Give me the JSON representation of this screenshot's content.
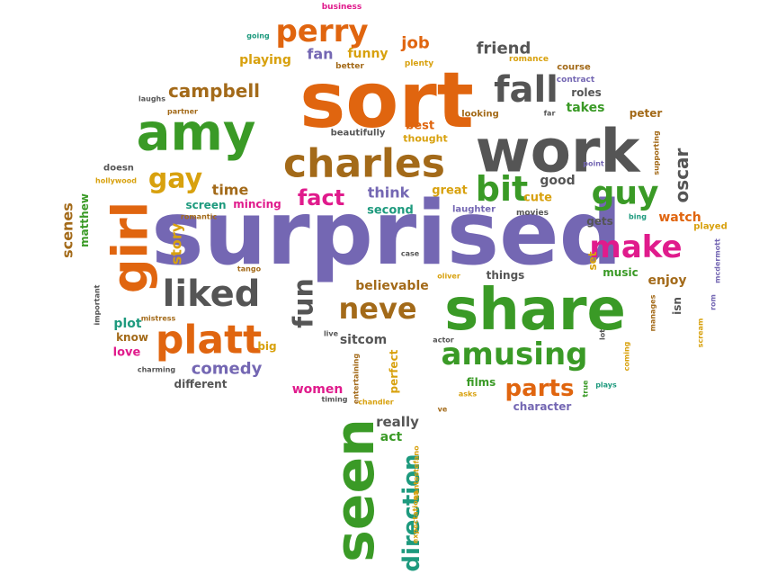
{
  "colors": {
    "orange": "#e0650f",
    "green": "#3a9a26",
    "purple": "#7467b3",
    "gray": "#555555",
    "brown": "#a36a19",
    "magenta": "#e01b8c",
    "teal": "#1e9a7e",
    "gold": "#d8a10e"
  },
  "words": [
    {
      "text": "surprised",
      "color": "purple"
    },
    {
      "text": "sort",
      "color": "orange"
    },
    {
      "text": "work",
      "color": "gray"
    },
    {
      "text": "share",
      "color": "green"
    },
    {
      "text": "amy",
      "color": "green"
    },
    {
      "text": "charles",
      "color": "brown"
    },
    {
      "text": "girl",
      "color": "orange"
    },
    {
      "text": "seen",
      "color": "green"
    },
    {
      "text": "platt",
      "color": "orange"
    },
    {
      "text": "liked",
      "color": "gray"
    },
    {
      "text": "fall",
      "color": "gray"
    },
    {
      "text": "make",
      "color": "magenta"
    },
    {
      "text": "perry",
      "color": "orange"
    },
    {
      "text": "amusing",
      "color": "green"
    },
    {
      "text": "neve",
      "color": "brown"
    },
    {
      "text": "bit",
      "color": "green"
    },
    {
      "text": "guy",
      "color": "green"
    },
    {
      "text": "gay",
      "color": "gold"
    },
    {
      "text": "fact",
      "color": "magenta"
    },
    {
      "text": "fun",
      "color": "gray"
    },
    {
      "text": "direction",
      "color": "teal"
    },
    {
      "text": "campbell",
      "color": "brown"
    },
    {
      "text": "parts",
      "color": "orange"
    },
    {
      "text": "comedy",
      "color": "purple"
    },
    {
      "text": "oscar",
      "color": "gray"
    },
    {
      "text": "story",
      "color": "gold"
    },
    {
      "text": "scenes",
      "color": "brown"
    },
    {
      "text": "friend",
      "color": "gray"
    },
    {
      "text": "job",
      "color": "orange"
    },
    {
      "text": "fan",
      "color": "purple"
    },
    {
      "text": "funny",
      "color": "gold"
    },
    {
      "text": "playing",
      "color": "gold"
    },
    {
      "text": "think",
      "color": "purple"
    },
    {
      "text": "time",
      "color": "brown"
    },
    {
      "text": "believable",
      "color": "brown"
    },
    {
      "text": "sitcom",
      "color": "gray"
    },
    {
      "text": "plot",
      "color": "teal"
    },
    {
      "text": "enjoy",
      "color": "brown"
    },
    {
      "text": "takes",
      "color": "green"
    },
    {
      "text": "roles",
      "color": "gray"
    },
    {
      "text": "peter",
      "color": "brown"
    },
    {
      "text": "watch",
      "color": "orange"
    },
    {
      "text": "gets",
      "color": "gray"
    },
    {
      "text": "good",
      "color": "gray"
    },
    {
      "text": "cute",
      "color": "gold"
    },
    {
      "text": "great",
      "color": "gold"
    },
    {
      "text": "second",
      "color": "teal"
    },
    {
      "text": "screen",
      "color": "teal"
    },
    {
      "text": "mincing",
      "color": "magenta"
    },
    {
      "text": "best",
      "color": "orange"
    },
    {
      "text": "really",
      "color": "gray"
    },
    {
      "text": "act",
      "color": "green"
    },
    {
      "text": "women",
      "color": "magenta"
    },
    {
      "text": "different",
      "color": "gray"
    },
    {
      "text": "love",
      "color": "magenta"
    },
    {
      "text": "know",
      "color": "brown"
    },
    {
      "text": "big",
      "color": "gold"
    },
    {
      "text": "perfect",
      "color": "gold"
    },
    {
      "text": "character",
      "color": "purple"
    },
    {
      "text": "films",
      "color": "green"
    },
    {
      "text": "set",
      "color": "gold"
    },
    {
      "text": "music",
      "color": "green"
    },
    {
      "text": "isn",
      "color": "gray"
    },
    {
      "text": "things",
      "color": "gray"
    },
    {
      "text": "matthew",
      "color": "green"
    },
    {
      "text": "thought",
      "color": "gold"
    },
    {
      "text": "beautifully",
      "color": "gray"
    },
    {
      "text": "looking",
      "color": "brown"
    },
    {
      "text": "laughter",
      "color": "purple"
    },
    {
      "text": "movies",
      "color": "gray"
    },
    {
      "text": "course",
      "color": "brown"
    },
    {
      "text": "contract",
      "color": "purple"
    },
    {
      "text": "romance",
      "color": "gold"
    },
    {
      "text": "better",
      "color": "brown"
    },
    {
      "text": "plenty",
      "color": "gold"
    },
    {
      "text": "going",
      "color": "teal"
    },
    {
      "text": "business",
      "color": "magenta"
    },
    {
      "text": "laughs",
      "color": "gray"
    },
    {
      "text": "partner",
      "color": "brown"
    },
    {
      "text": "doesn",
      "color": "gray"
    },
    {
      "text": "hollywood",
      "color": "gold"
    },
    {
      "text": "romantic",
      "color": "brown"
    },
    {
      "text": "important",
      "color": "gray"
    },
    {
      "text": "mistress",
      "color": "brown"
    },
    {
      "text": "charming",
      "color": "gray"
    },
    {
      "text": "tango",
      "color": "brown"
    },
    {
      "text": "live",
      "color": "gray"
    },
    {
      "text": "timing",
      "color": "gray"
    },
    {
      "text": "chandler",
      "color": "gold"
    },
    {
      "text": "entertaining",
      "color": "brown"
    },
    {
      "text": "expectations",
      "color": "gold"
    },
    {
      "text": "santostefano",
      "color": "gold"
    },
    {
      "text": "case",
      "color": "gray"
    },
    {
      "text": "oliver",
      "color": "gold"
    },
    {
      "text": "actor",
      "color": "gray"
    },
    {
      "text": "lot",
      "color": "gray"
    },
    {
      "text": "asks",
      "color": "gold"
    },
    {
      "text": "ve",
      "color": "brown"
    },
    {
      "text": "true",
      "color": "green"
    },
    {
      "text": "plays",
      "color": "teal"
    },
    {
      "text": "coming",
      "color": "gold"
    },
    {
      "text": "manages",
      "color": "brown"
    },
    {
      "text": "scream",
      "color": "gold"
    },
    {
      "text": "rom",
      "color": "purple"
    },
    {
      "text": "mcdermott",
      "color": "purple"
    },
    {
      "text": "played",
      "color": "gold"
    },
    {
      "text": "bing",
      "color": "teal"
    },
    {
      "text": "supporting",
      "color": "brown"
    },
    {
      "text": "point",
      "color": "purple"
    },
    {
      "text": "far",
      "color": "gray"
    }
  ]
}
